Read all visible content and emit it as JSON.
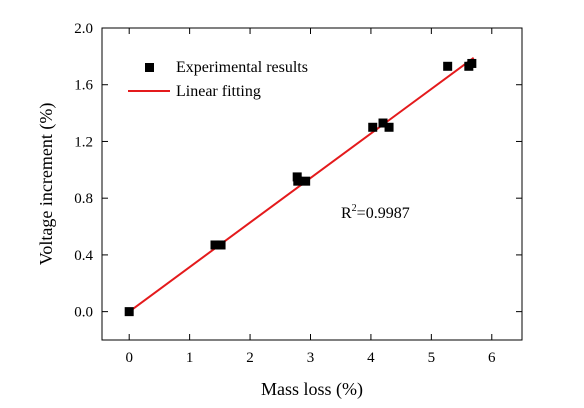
{
  "chart_data": {
    "type": "scatter",
    "xlabel": "Mass loss (%)",
    "ylabel": "Voltage increment (%)",
    "xlim": [
      -0.45,
      6.5
    ],
    "ylim": [
      -0.2,
      2.0
    ],
    "xticks": [
      "0",
      "1",
      "2",
      "3",
      "4",
      "5",
      "6"
    ],
    "yticks": [
      "0.0",
      "0.4",
      "0.8",
      "1.2",
      "1.6",
      "2.0"
    ],
    "xtick_values": [
      0,
      1,
      2,
      3,
      4,
      5,
      6
    ],
    "ytick_values": [
      0.0,
      0.4,
      0.8,
      1.2,
      1.6,
      2.0
    ],
    "grid": false,
    "legend_position": "top-left",
    "series": [
      {
        "name": "Experimental results",
        "kind": "scatter",
        "marker": "square",
        "color": "#000000",
        "x": [
          0.0,
          1.42,
          1.52,
          2.78,
          2.79,
          2.92,
          4.03,
          4.2,
          4.3,
          5.27,
          5.62,
          5.67
        ],
        "y": [
          0.0,
          0.47,
          0.47,
          0.95,
          0.92,
          0.92,
          1.3,
          1.33,
          1.3,
          1.73,
          1.73,
          1.75
        ]
      },
      {
        "name": "Linear fitting",
        "kind": "line",
        "color": "#e41a1c",
        "x": [
          0.0,
          5.7
        ],
        "y": [
          0.0,
          1.79
        ]
      }
    ],
    "annotation": {
      "base": "R",
      "sup": "2",
      "text": "=0.9987",
      "x": 3.55,
      "y": 0.69
    }
  }
}
